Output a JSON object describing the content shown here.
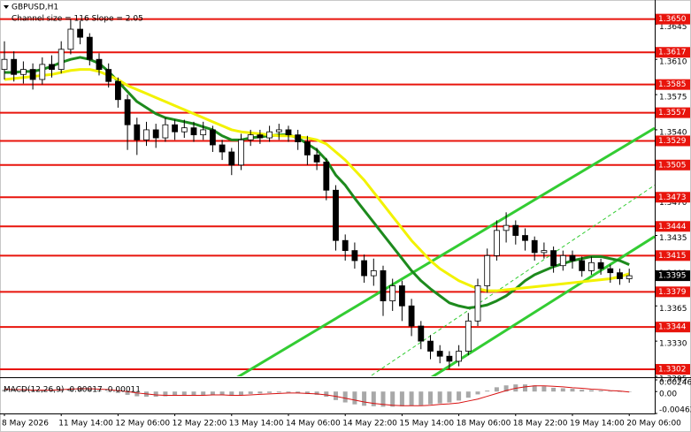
{
  "chart_data": {
    "type": "candlestick",
    "title": "GBPUSD,H1",
    "subtitle": "Channel size = 116 Slope = 2.05",
    "categories": [
      "8 May 2026",
      null,
      null,
      null,
      null,
      null,
      "11 May 14:00",
      null,
      null,
      null,
      null,
      null,
      "12 May 06:00",
      null,
      null,
      null,
      null,
      null,
      "12 May 22:00",
      null,
      null,
      null,
      null,
      null,
      "13 May 14:00",
      null,
      null,
      null,
      null,
      null,
      "14 May 06:00",
      null,
      null,
      null,
      null,
      null,
      "14 May 22:00",
      null,
      null,
      null,
      null,
      null,
      "15 May 14:00",
      null,
      null,
      null,
      null,
      null,
      "18 May 06:00",
      null,
      null,
      null,
      null,
      null,
      "18 May 22:00",
      null,
      null,
      null,
      null,
      null,
      "19 May 14:00",
      null,
      null,
      null,
      null,
      null,
      "20 May 06:00"
    ],
    "ohlc": [
      [
        1.36,
        1.3628,
        1.359,
        1.361
      ],
      [
        1.361,
        1.3618,
        1.3588,
        1.3595
      ],
      [
        1.3595,
        1.3608,
        1.3586,
        1.36
      ],
      [
        1.36,
        1.3606,
        1.358,
        1.359
      ],
      [
        1.359,
        1.3612,
        1.3585,
        1.3605
      ],
      [
        1.3605,
        1.3614,
        1.3592,
        1.36
      ],
      [
        1.36,
        1.3628,
        1.3596,
        1.362
      ],
      [
        1.362,
        1.365,
        1.3615,
        1.364
      ],
      [
        1.364,
        1.3648,
        1.3625,
        1.3632
      ],
      [
        1.3632,
        1.3636,
        1.3604,
        1.361
      ],
      [
        1.361,
        1.3616,
        1.3594,
        1.36
      ],
      [
        1.36,
        1.3606,
        1.3582,
        1.3588
      ],
      [
        1.3588,
        1.3592,
        1.3562,
        1.357
      ],
      [
        1.357,
        1.3575,
        1.352,
        1.3545
      ],
      [
        1.3545,
        1.3552,
        1.3515,
        1.353
      ],
      [
        1.353,
        1.3548,
        1.3524,
        1.354
      ],
      [
        1.354,
        1.3546,
        1.3522,
        1.3532
      ],
      [
        1.3532,
        1.3552,
        1.3528,
        1.3545
      ],
      [
        1.3545,
        1.355,
        1.353,
        1.3538
      ],
      [
        1.3538,
        1.355,
        1.3532,
        1.3542
      ],
      [
        1.3542,
        1.3548,
        1.3528,
        1.3535
      ],
      [
        1.3535,
        1.3548,
        1.353,
        1.354
      ],
      [
        1.354,
        1.3544,
        1.3518,
        1.3525
      ],
      [
        1.3525,
        1.353,
        1.351,
        1.3518
      ],
      [
        1.3518,
        1.3522,
        1.3495,
        1.3505
      ],
      [
        1.3505,
        1.3536,
        1.35,
        1.353
      ],
      [
        1.353,
        1.354,
        1.3524,
        1.3535
      ],
      [
        1.3535,
        1.354,
        1.3526,
        1.3532
      ],
      [
        1.3532,
        1.3544,
        1.3528,
        1.3538
      ],
      [
        1.3538,
        1.3546,
        1.353,
        1.354
      ],
      [
        1.354,
        1.3544,
        1.3528,
        1.3535
      ],
      [
        1.3535,
        1.354,
        1.352,
        1.3528
      ],
      [
        1.3528,
        1.3534,
        1.3505,
        1.3515
      ],
      [
        1.3515,
        1.3522,
        1.35,
        1.3508
      ],
      [
        1.3508,
        1.3512,
        1.347,
        1.348
      ],
      [
        1.348,
        1.3485,
        1.342,
        1.343
      ],
      [
        1.343,
        1.3436,
        1.341,
        1.342
      ],
      [
        1.342,
        1.3428,
        1.3402,
        1.341
      ],
      [
        1.341,
        1.3416,
        1.3388,
        1.3395
      ],
      [
        1.3395,
        1.3412,
        1.3385,
        1.34
      ],
      [
        1.34,
        1.3405,
        1.3355,
        1.337
      ],
      [
        1.337,
        1.3392,
        1.336,
        1.3385
      ],
      [
        1.3385,
        1.339,
        1.335,
        1.3365
      ],
      [
        1.3365,
        1.3372,
        1.3335,
        1.3345
      ],
      [
        1.3345,
        1.335,
        1.3322,
        1.333
      ],
      [
        1.333,
        1.3336,
        1.3312,
        1.332
      ],
      [
        1.332,
        1.3326,
        1.3308,
        1.3315
      ],
      [
        1.3315,
        1.332,
        1.3302,
        1.331
      ],
      [
        1.331,
        1.3326,
        1.3305,
        1.332
      ],
      [
        1.332,
        1.3358,
        1.3316,
        1.335
      ],
      [
        1.335,
        1.3392,
        1.3345,
        1.3385
      ],
      [
        1.3385,
        1.3422,
        1.3378,
        1.3415
      ],
      [
        1.3415,
        1.345,
        1.341,
        1.344
      ],
      [
        1.344,
        1.3458,
        1.3428,
        1.3445
      ],
      [
        1.3445,
        1.345,
        1.3426,
        1.3435
      ],
      [
        1.3435,
        1.3442,
        1.342,
        1.343
      ],
      [
        1.343,
        1.3434,
        1.341,
        1.3418
      ],
      [
        1.3418,
        1.3428,
        1.3412,
        1.342
      ],
      [
        1.342,
        1.3424,
        1.3398,
        1.3405
      ],
      [
        1.3405,
        1.342,
        1.34,
        1.3415
      ],
      [
        1.3415,
        1.342,
        1.3402,
        1.341
      ],
      [
        1.341,
        1.3414,
        1.3394,
        1.34
      ],
      [
        1.34,
        1.3414,
        1.3396,
        1.3408
      ],
      [
        1.3408,
        1.3412,
        1.3396,
        1.3402
      ],
      [
        1.3402,
        1.3406,
        1.3388,
        1.3398
      ],
      [
        1.3398,
        1.3402,
        1.3386,
        1.3392
      ],
      [
        1.3392,
        1.3402,
        1.3388,
        1.3395
      ]
    ],
    "candle_colors": {
      "up": "#ffffff",
      "down": "#000000",
      "outline": "#000000"
    },
    "series": [
      {
        "color": "#1d8a1d",
        "values": [
          1.3597,
          1.3597,
          1.3598,
          1.3598,
          1.36,
          1.3603,
          1.3607,
          1.361,
          1.3612,
          1.361,
          1.3606,
          1.3598,
          1.3588,
          1.3578,
          1.3568,
          1.3562,
          1.3556,
          1.3552,
          1.355,
          1.3548,
          1.3546,
          1.3543,
          1.354,
          1.3534,
          1.353,
          1.353,
          1.3532,
          1.3533,
          1.3534,
          1.3535,
          1.3535,
          1.3532,
          1.3526,
          1.352,
          1.351,
          1.3495,
          1.3485,
          1.3472,
          1.346,
          1.3448,
          1.3436,
          1.3424,
          1.3412,
          1.34,
          1.339,
          1.3382,
          1.3375,
          1.3368,
          1.3365,
          1.3363,
          1.3364,
          1.3366,
          1.337,
          1.3375,
          1.3382,
          1.339,
          1.3396,
          1.34,
          1.3404,
          1.3407,
          1.341,
          1.3412,
          1.3414,
          1.3414,
          1.3412,
          1.341,
          1.3406
        ]
      },
      {
        "color": "#f2f200",
        "values": [
          1.359,
          1.3591,
          1.3592,
          1.3593,
          1.3594,
          1.3595,
          1.3597,
          1.3599,
          1.36,
          1.36,
          1.3598,
          1.3594,
          1.359,
          1.3584,
          1.358,
          1.3576,
          1.3572,
          1.3568,
          1.3564,
          1.356,
          1.3556,
          1.3552,
          1.3548,
          1.3544,
          1.354,
          1.3538,
          1.3537,
          1.3536,
          1.3535,
          1.3534,
          1.3534,
          1.3533,
          1.3532,
          1.353,
          1.3526,
          1.3518,
          1.351,
          1.35,
          1.349,
          1.3478,
          1.3466,
          1.3454,
          1.3442,
          1.343,
          1.342,
          1.341,
          1.3402,
          1.3396,
          1.339,
          1.3386,
          1.3382,
          1.338,
          1.338,
          1.3381,
          1.3382,
          1.3383,
          1.3384,
          1.3385,
          1.3386,
          1.3387,
          1.3388,
          1.3389,
          1.339,
          1.3391,
          1.3392,
          1.3394,
          1.3397
        ]
      }
    ],
    "channel": {
      "color": "#33cc33",
      "lines": [
        {
          "x": [
            23.83,
            68.69
          ],
          "y": [
            1.32897,
            1.35417
          ],
          "dashed": false
        },
        {
          "x": [
            44.39,
            68.69
          ],
          "y": [
            1.32897,
            1.3434
          ],
          "dashed": false
        },
        {
          "x": [
            38.79,
            68.69
          ],
          "y": [
            1.3296,
            1.3485
          ],
          "dashed": true
        }
      ]
    },
    "ylim": [
      1.3295,
      1.3669
    ],
    "yticks": [
      1.3645,
      {
        "value": 1.361,
        "label": "1.3610"
      },
      1.3575,
      {
        "value": 1.354,
        "label": "1.3540"
      },
      {
        "value": 1.347,
        "label": "1.3470"
      },
      1.3435,
      {
        "value": 1.34,
        "label": "1.3400"
      },
      1.3365,
      {
        "value": 1.333,
        "label": "1.3330"
      },
      1.3295
    ],
    "levels": {
      "color": "#e8140c",
      "values": [
        {
          "value": 1.365,
          "label": "1.3650"
        },
        1.3617,
        1.3585,
        1.3557,
        1.3529,
        1.3505,
        1.3473,
        1.3444,
        1.3415,
        1.3379,
        1.3344,
        1.3302
      ]
    },
    "current_price": 1.3395,
    "macd": {
      "title": "MACD(12,26,9) -0.00017 -0.00011",
      "hist_color": "#a8a8a8",
      "signal_color": "#d81010",
      "ylim": [
        -0.00462,
        0.00246
      ],
      "yticks": [
        0.00246,
        {
          "value": 0,
          "label": "0.00"
        },
        -0.00462
      ],
      "histogram": [
        0.0004,
        0.0003,
        0.0003,
        0.0002,
        0.0002,
        0.0003,
        0.0005,
        0.0007,
        0.0008,
        0.0006,
        0.0003,
        0.0,
        -0.0003,
        -0.0007,
        -0.001,
        -0.0011,
        -0.0011,
        -0.001,
        -0.0009,
        -0.0008,
        -0.0008,
        -0.0007,
        -0.0007,
        -0.0008,
        -0.0009,
        -0.0007,
        -0.0005,
        -0.0004,
        -0.0003,
        -0.0002,
        -0.0002,
        -0.0003,
        -0.0005,
        -0.0007,
        -0.0011,
        -0.0018,
        -0.0023,
        -0.0027,
        -0.003,
        -0.0031,
        -0.0032,
        -0.0032,
        -0.0031,
        -0.003,
        -0.0029,
        -0.0027,
        -0.0025,
        -0.0023,
        -0.0019,
        -0.0013,
        -0.0006,
        0.0002,
        0.0009,
        0.0013,
        0.0015,
        0.0015,
        0.0013,
        0.0011,
        0.0008,
        0.0007,
        0.0006,
        0.0004,
        0.0003,
        0.0002,
        0.0001,
        0.0,
        -0.0001
      ],
      "signal": [
        0.0005,
        0.0004,
        0.0004,
        0.0003,
        0.0003,
        0.0003,
        0.0004,
        0.0005,
        0.0006,
        0.0006,
        0.0005,
        0.0004,
        0.0002,
        0.0,
        -0.0003,
        -0.0005,
        -0.0007,
        -0.0008,
        -0.0008,
        -0.0008,
        -0.0008,
        -0.0008,
        -0.0007,
        -0.0007,
        -0.0008,
        -0.0008,
        -0.0007,
        -0.0006,
        -0.0005,
        -0.0004,
        -0.0003,
        -0.0003,
        -0.0004,
        -0.0005,
        -0.0007,
        -0.001,
        -0.0014,
        -0.0018,
        -0.0022,
        -0.0025,
        -0.0027,
        -0.0029,
        -0.003,
        -0.003,
        -0.003,
        -0.0029,
        -0.0027,
        -0.0026,
        -0.0024,
        -0.002,
        -0.0016,
        -0.001,
        -0.0004,
        0.0002,
        0.0007,
        0.001,
        0.0012,
        0.0012,
        0.0011,
        0.001,
        0.0008,
        0.0007,
        0.0005,
        0.0004,
        0.0002,
        0.0001,
        -0.0001
      ]
    }
  }
}
